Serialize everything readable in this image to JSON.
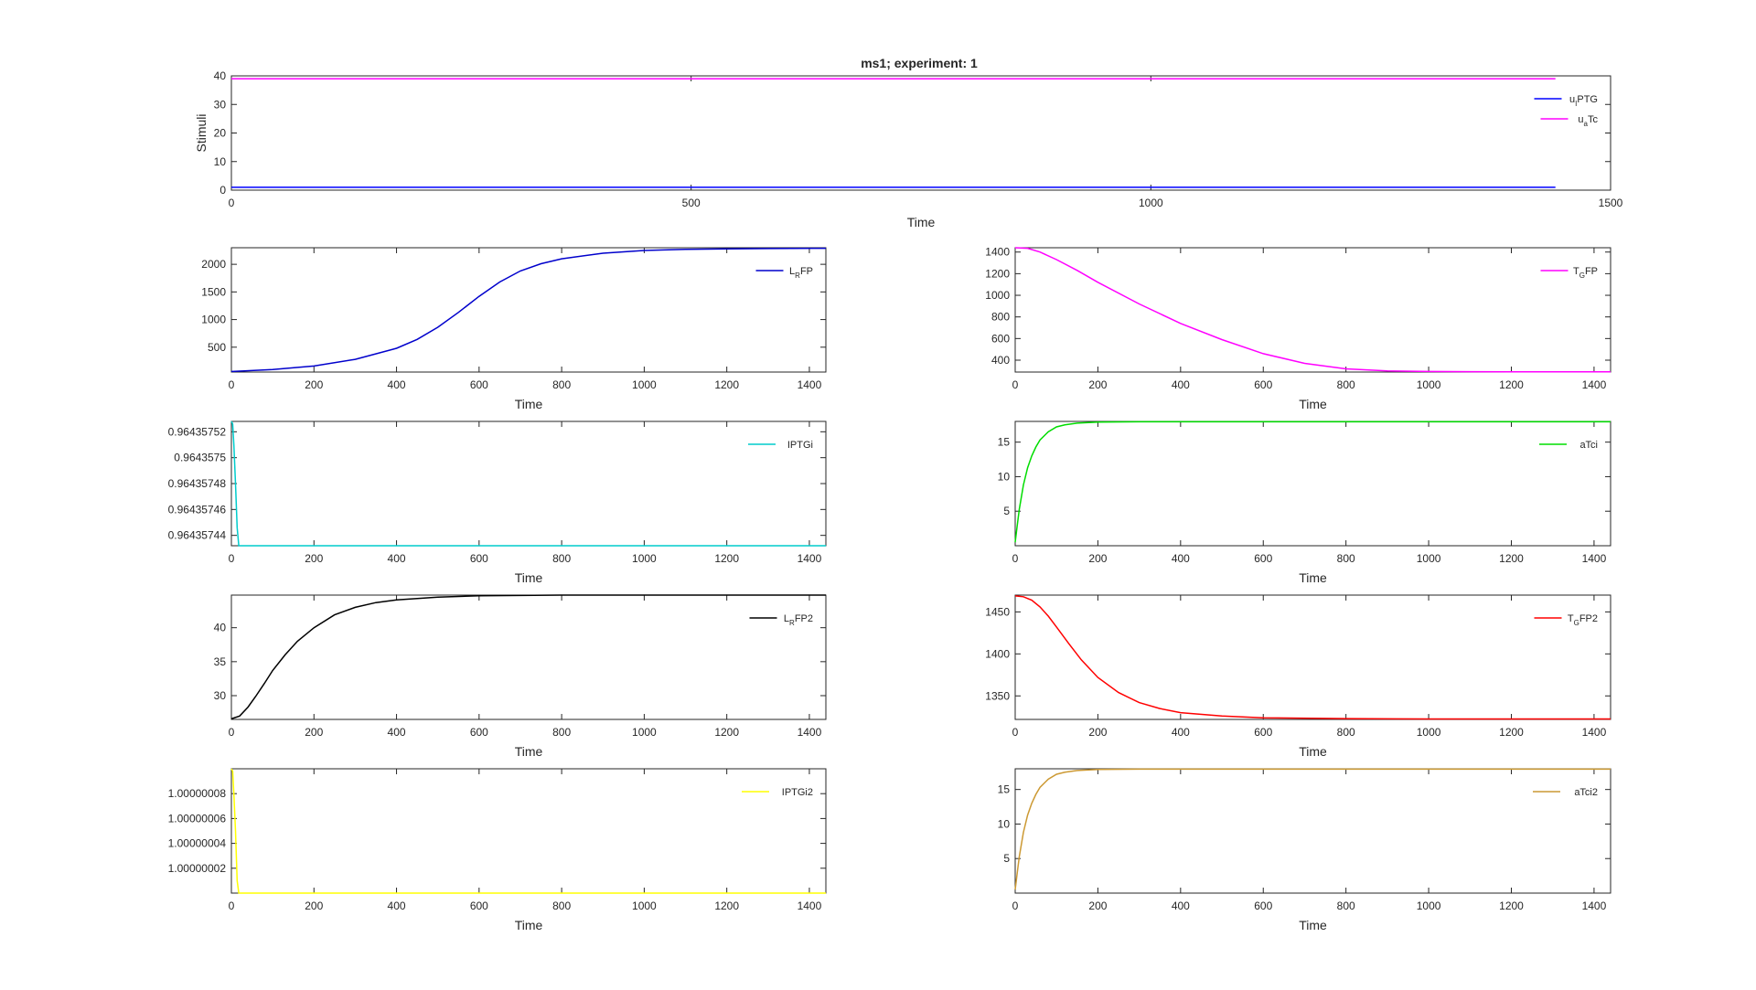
{
  "figure_title": "ms1; experiment: 1",
  "chart_data": [
    {
      "id": "stimuli",
      "type": "line",
      "title": "ms1; experiment: 1",
      "xlabel": "Time",
      "ylabel": "Stimuli",
      "xlim": [
        0,
        1500
      ],
      "ylim": [
        0,
        40
      ],
      "xticks": [
        0,
        500,
        1000,
        1500
      ],
      "xtick_labels": [
        "0",
        "500",
        "1000",
        "1500"
      ],
      "yticks": [
        0,
        10,
        20,
        30,
        40
      ],
      "ytick_labels": [
        "0",
        "10",
        "20",
        "30",
        "40"
      ],
      "legend_position": "top-right",
      "series": [
        {
          "name": "u_IPTG",
          "label_parts": [
            "u",
            "I",
            "PTG"
          ],
          "color": "#0000ff",
          "x": [
            0,
            1440
          ],
          "y": [
            1,
            1
          ]
        },
        {
          "name": "u_aTc",
          "label_parts": [
            "u",
            "a",
            "Tc"
          ],
          "color": "#ff00ff",
          "x": [
            0,
            1440
          ],
          "y": [
            39,
            39
          ]
        }
      ]
    },
    {
      "id": "LRFP",
      "type": "line",
      "xlabel": "Time",
      "xlim": [
        0,
        1440
      ],
      "ylim": [
        50,
        2300
      ],
      "xticks": [
        0,
        200,
        400,
        600,
        800,
        1000,
        1200,
        1400
      ],
      "xtick_labels": [
        "0",
        "200",
        "400",
        "600",
        "800",
        "1000",
        "1200",
        "1400"
      ],
      "yticks": [
        500,
        1000,
        1500,
        2000
      ],
      "ytick_labels": [
        "500",
        "1000",
        "1500",
        "2000"
      ],
      "legend_position": "top-right",
      "series": [
        {
          "name": "L_RFP",
          "label_parts": [
            "L",
            "R",
            "FP"
          ],
          "color": "#0000cc",
          "x": [
            0,
            100,
            200,
            300,
            400,
            450,
            500,
            550,
            600,
            650,
            700,
            750,
            800,
            900,
            1000,
            1100,
            1200,
            1300,
            1440
          ],
          "y": [
            60,
            95,
            160,
            280,
            480,
            640,
            860,
            1130,
            1420,
            1680,
            1880,
            2010,
            2100,
            2200,
            2250,
            2270,
            2280,
            2285,
            2290
          ]
        }
      ]
    },
    {
      "id": "TGFP",
      "type": "line",
      "xlabel": "Time",
      "xlim": [
        0,
        1440
      ],
      "ylim": [
        290,
        1440
      ],
      "xticks": [
        0,
        200,
        400,
        600,
        800,
        1000,
        1200,
        1400
      ],
      "xtick_labels": [
        "0",
        "200",
        "400",
        "600",
        "800",
        "1000",
        "1200",
        "1400"
      ],
      "yticks": [
        400,
        600,
        800,
        1000,
        1200,
        1400
      ],
      "ytick_labels": [
        "400",
        "600",
        "800",
        "1000",
        "1200",
        "1400"
      ],
      "legend_position": "top-right",
      "series": [
        {
          "name": "T_GFP",
          "label_parts": [
            "T",
            "G",
            "FP"
          ],
          "color": "#ff00ff",
          "x": [
            0,
            30,
            60,
            100,
            150,
            200,
            300,
            400,
            500,
            600,
            700,
            800,
            900,
            1000,
            1100,
            1200,
            1300,
            1440
          ],
          "y": [
            1440,
            1435,
            1400,
            1330,
            1230,
            1120,
            920,
            740,
            590,
            460,
            370,
            320,
            300,
            295,
            293,
            292,
            292,
            292
          ]
        }
      ]
    },
    {
      "id": "IPTGi",
      "type": "line",
      "xlabel": "Time",
      "xlim": [
        0,
        1440
      ],
      "ylim": [
        0.964357432,
        0.964357528
      ],
      "xticks": [
        0,
        200,
        400,
        600,
        800,
        1000,
        1200,
        1400
      ],
      "xtick_labels": [
        "0",
        "200",
        "400",
        "600",
        "800",
        "1000",
        "1200",
        "1400"
      ],
      "yticks": [
        0.96435744,
        0.96435746,
        0.96435748,
        0.9643575,
        0.96435752
      ],
      "ytick_labels": [
        "0.96435744",
        "0.96435746",
        "0.96435748",
        "0.9643575",
        "0.96435752"
      ],
      "legend_position": "top-right",
      "series": [
        {
          "name": "IPTGi",
          "label_parts": [
            "IPTGi"
          ],
          "color": "#00cccc",
          "x": [
            0,
            3,
            6,
            10,
            14,
            18,
            100,
            1440
          ],
          "y": [
            0.964357528,
            0.964357526,
            0.96435751,
            0.96435748,
            0.964357446,
            0.964357432,
            0.964357432,
            0.964357432
          ]
        }
      ]
    },
    {
      "id": "aTci",
      "type": "line",
      "xlabel": "Time",
      "xlim": [
        0,
        1440
      ],
      "ylim": [
        0,
        18
      ],
      "xticks": [
        0,
        200,
        400,
        600,
        800,
        1000,
        1200,
        1400
      ],
      "xtick_labels": [
        "0",
        "200",
        "400",
        "600",
        "800",
        "1000",
        "1200",
        "1400"
      ],
      "yticks": [
        5,
        10,
        15
      ],
      "ytick_labels": [
        "5",
        "10",
        "15"
      ],
      "legend_position": "top-right",
      "series": [
        {
          "name": "aTci",
          "label_parts": [
            "aTci"
          ],
          "color": "#00dd00",
          "x": [
            0,
            5,
            10,
            20,
            30,
            40,
            50,
            60,
            80,
            100,
            120,
            150,
            200,
            300,
            1440
          ],
          "y": [
            0.5,
            3.0,
            5.3,
            8.8,
            11.3,
            13.0,
            14.3,
            15.3,
            16.5,
            17.2,
            17.5,
            17.75,
            17.9,
            17.95,
            17.95
          ]
        }
      ]
    },
    {
      "id": "LRFP2",
      "type": "line",
      "xlabel": "Time",
      "xlim": [
        0,
        1440
      ],
      "ylim": [
        26.5,
        44.8
      ],
      "xticks": [
        0,
        200,
        400,
        600,
        800,
        1000,
        1200,
        1400
      ],
      "xtick_labels": [
        "0",
        "200",
        "400",
        "600",
        "800",
        "1000",
        "1200",
        "1400"
      ],
      "yticks": [
        30,
        35,
        40
      ],
      "ytick_labels": [
        "30",
        "35",
        "40"
      ],
      "legend_position": "top-right",
      "series": [
        {
          "name": "L_RFP2",
          "label_parts": [
            "L",
            "R",
            "FP2"
          ],
          "color": "#000000",
          "x": [
            0,
            20,
            40,
            60,
            80,
            100,
            130,
            160,
            200,
            250,
            300,
            350,
            400,
            500,
            600,
            800,
            1000,
            1440
          ],
          "y": [
            26.6,
            27.0,
            28.3,
            30.0,
            31.8,
            33.7,
            36.0,
            38.0,
            40.0,
            41.9,
            43.0,
            43.7,
            44.1,
            44.5,
            44.7,
            44.8,
            44.8,
            44.8
          ]
        }
      ]
    },
    {
      "id": "TGFP2",
      "type": "line",
      "xlabel": "Time",
      "xlim": [
        0,
        1440
      ],
      "ylim": [
        1322,
        1470
      ],
      "xticks": [
        0,
        200,
        400,
        600,
        800,
        1000,
        1200,
        1400
      ],
      "xtick_labels": [
        "0",
        "200",
        "400",
        "600",
        "800",
        "1000",
        "1200",
        "1400"
      ],
      "yticks": [
        1350,
        1400,
        1450
      ],
      "ytick_labels": [
        "1350",
        "1400",
        "1450"
      ],
      "legend_position": "top-right",
      "series": [
        {
          "name": "T_GFP2",
          "label_parts": [
            "T",
            "G",
            "FP2"
          ],
          "color": "#ff0000",
          "x": [
            0,
            20,
            40,
            60,
            80,
            100,
            130,
            160,
            200,
            250,
            300,
            350,
            400,
            500,
            600,
            800,
            1000,
            1440
          ],
          "y": [
            1469,
            1468,
            1464,
            1456,
            1445,
            1432,
            1412,
            1393,
            1372,
            1354,
            1342,
            1335,
            1330,
            1326,
            1324,
            1323,
            1322.5,
            1322.5
          ]
        }
      ]
    },
    {
      "id": "IPTGi2",
      "type": "line",
      "xlabel": "Time",
      "xlim": [
        0,
        1440
      ],
      "ylim": [
        1.0,
        1.0000001
      ],
      "xticks": [
        0,
        200,
        400,
        600,
        800,
        1000,
        1200,
        1400
      ],
      "xtick_labels": [
        "0",
        "200",
        "400",
        "600",
        "800",
        "1000",
        "1200",
        "1400"
      ],
      "yticks": [
        1.00000002,
        1.00000004,
        1.00000006,
        1.00000008
      ],
      "ytick_labels": [
        "1.00000002",
        "1.00000004",
        "1.00000006",
        "1.00000008"
      ],
      "legend_position": "top-right",
      "series": [
        {
          "name": "IPTGi2",
          "label_parts": [
            "IPTGi2"
          ],
          "color": "#ffff00",
          "x": [
            0,
            3,
            6,
            10,
            14,
            18,
            100,
            1440
          ],
          "y": [
            1.0000001,
            1.000000098,
            1.00000008,
            1.00000005,
            1.00000001,
            1.0,
            1.0,
            1.0
          ]
        }
      ]
    },
    {
      "id": "aTci2",
      "type": "line",
      "xlabel": "Time",
      "xlim": [
        0,
        1440
      ],
      "ylim": [
        0,
        18
      ],
      "xticks": [
        0,
        200,
        400,
        600,
        800,
        1000,
        1200,
        1400
      ],
      "xtick_labels": [
        "0",
        "200",
        "400",
        "600",
        "800",
        "1000",
        "1200",
        "1400"
      ],
      "yticks": [
        5,
        10,
        15
      ],
      "ytick_labels": [
        "5",
        "10",
        "15"
      ],
      "legend_position": "top-right",
      "series": [
        {
          "name": "aTci2",
          "label_parts": [
            "aTci2"
          ],
          "color": "#cc9933",
          "x": [
            0,
            5,
            10,
            20,
            30,
            40,
            50,
            60,
            80,
            100,
            120,
            150,
            200,
            300,
            1440
          ],
          "y": [
            0.5,
            3.0,
            5.3,
            8.8,
            11.3,
            13.0,
            14.3,
            15.3,
            16.5,
            17.2,
            17.5,
            17.75,
            17.9,
            17.95,
            17.95
          ]
        }
      ]
    }
  ]
}
